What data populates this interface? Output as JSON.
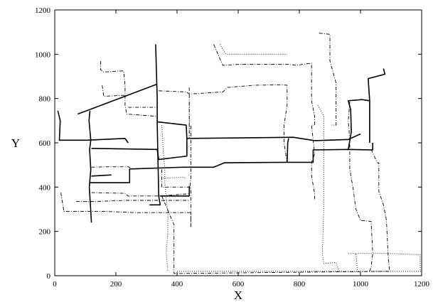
{
  "chart_data": {
    "type": "line",
    "title": "",
    "xlabel": "X",
    "ylabel": "Y",
    "xlim": [
      0,
      1200
    ],
    "ylim": [
      0,
      1200
    ],
    "grid": false,
    "legend": "none",
    "xticks": [
      "0",
      "200",
      "400",
      "600",
      "800",
      "1000",
      "1200"
    ],
    "yticks": [
      "0",
      "200",
      "400",
      "600",
      "800",
      "1000",
      "1200"
    ],
    "series": [
      {
        "style": "solid-thick",
        "points": [
          [
            10,
            745
          ],
          [
            18,
            700
          ],
          [
            15,
            612
          ],
          [
            105,
            612
          ],
          [
            230,
            620
          ],
          [
            240,
            600
          ]
        ]
      },
      {
        "style": "solid-thick",
        "points": [
          [
            115,
            745
          ],
          [
            112,
            700
          ],
          [
            118,
            612
          ],
          [
            114,
            570
          ],
          [
            118,
            480
          ],
          [
            113,
            400
          ],
          [
            120,
            240
          ]
        ]
      },
      {
        "style": "solid-thick",
        "points": [
          [
            75,
            730
          ],
          [
            335,
            865
          ]
        ]
      },
      {
        "style": "solid-thick",
        "points": [
          [
            330,
            1045
          ],
          [
            333,
            900
          ],
          [
            335,
            800
          ],
          [
            335,
            690
          ]
        ]
      },
      {
        "style": "solid-thick",
        "points": [
          [
            120,
            575
          ],
          [
            335,
            570
          ],
          [
            340,
            525
          ],
          [
            432,
            540
          ],
          [
            432,
            600
          ],
          [
            432,
            620
          ],
          [
            780,
            625
          ],
          [
            850,
            610
          ],
          [
            960,
            615
          ],
          [
            1000,
            640
          ]
        ]
      },
      {
        "style": "solid-thick",
        "points": [
          [
            335,
            695
          ],
          [
            430,
            680
          ],
          [
            432,
            620
          ]
        ]
      },
      {
        "style": "solid-thick",
        "points": [
          [
            115,
            420
          ],
          [
            245,
            420
          ],
          [
            245,
            482
          ],
          [
            420,
            490
          ],
          [
            520,
            490
          ],
          [
            555,
            510
          ],
          [
            760,
            512
          ],
          [
            845,
            512
          ],
          [
            845,
            568
          ],
          [
            960,
            570
          ],
          [
            1040,
            568
          ],
          [
            1040,
            600
          ]
        ]
      },
      {
        "style": "solid-thick",
        "points": [
          [
            120,
            450
          ],
          [
            185,
            455
          ]
        ]
      },
      {
        "style": "solid-thick",
        "points": [
          [
            335,
            690
          ],
          [
            340,
            360
          ],
          [
            345,
            320
          ],
          [
            310,
            320
          ]
        ]
      },
      {
        "style": "solid-thick",
        "points": [
          [
            345,
            360
          ],
          [
            440,
            360
          ],
          [
            440,
            405
          ]
        ]
      },
      {
        "style": "solid-thick",
        "points": [
          [
            760,
            512
          ],
          [
            762,
            600
          ],
          [
            765,
            620
          ]
        ]
      },
      {
        "style": "solid-thick",
        "points": [
          [
            960,
            570
          ],
          [
            970,
            650
          ],
          [
            968,
            750
          ],
          [
            960,
            790
          ],
          [
            1005,
            795
          ],
          [
            1030,
            790
          ],
          [
            1030,
            600
          ]
        ]
      },
      {
        "style": "solid-thick",
        "points": [
          [
            1030,
            790
          ],
          [
            1025,
            890
          ],
          [
            1080,
            910
          ],
          [
            1075,
            935
          ]
        ]
      },
      {
        "style": "dashdot",
        "points": [
          [
            150,
            970
          ],
          [
            150,
            930
          ],
          [
            160,
            920
          ],
          [
            225,
            925
          ],
          [
            230,
            860
          ],
          [
            230,
            770
          ],
          [
            235,
            730
          ],
          [
            330,
            720
          ]
        ]
      },
      {
        "style": "dashdot",
        "points": [
          [
            155,
            860
          ],
          [
            160,
            810
          ],
          [
            230,
            815
          ]
        ]
      },
      {
        "style": "dashdot",
        "points": [
          [
            240,
            760
          ],
          [
            330,
            760
          ]
        ]
      },
      {
        "style": "dashdot",
        "points": [
          [
            440,
            850
          ],
          [
            440,
            620
          ]
        ]
      },
      {
        "style": "dashdot",
        "points": [
          [
            340,
            835
          ],
          [
            430,
            830
          ],
          [
            440,
            820
          ],
          [
            550,
            830
          ],
          [
            565,
            850
          ],
          [
            650,
            860
          ],
          [
            740,
            862
          ],
          [
            760,
            860
          ],
          [
            760,
            840
          ],
          [
            760,
            770
          ],
          [
            750,
            680
          ],
          [
            750,
            600
          ],
          [
            760,
            510
          ]
        ]
      },
      {
        "style": "dashdot",
        "points": [
          [
            520,
            1045
          ],
          [
            540,
            980
          ],
          [
            550,
            950
          ],
          [
            610,
            955
          ],
          [
            760,
            955
          ],
          [
            790,
            950
          ],
          [
            840,
            960
          ],
          [
            840,
            790
          ],
          [
            850,
            720
          ],
          [
            850,
            680
          ],
          [
            840,
            680
          ],
          [
            850,
            550
          ],
          [
            840,
            512
          ],
          [
            840,
            450
          ],
          [
            850,
            370
          ],
          [
            850,
            340
          ]
        ]
      },
      {
        "style": "dashdot",
        "points": [
          [
            865,
            1095
          ],
          [
            900,
            1090
          ],
          [
            900,
            970
          ],
          [
            920,
            870
          ],
          [
            920,
            680
          ],
          [
            905,
            680
          ]
        ]
      },
      {
        "style": "dashdot",
        "points": [
          [
            120,
            490
          ],
          [
            180,
            492
          ],
          [
            240,
            492
          ],
          [
            260,
            480
          ]
        ]
      },
      {
        "style": "dashdot",
        "points": [
          [
            120,
            375
          ],
          [
            230,
            372
          ],
          [
            240,
            360
          ],
          [
            340,
            360
          ],
          [
            440,
            370
          ],
          [
            445,
            440
          ],
          [
            445,
            560
          ],
          [
            445,
            680
          ]
        ]
      },
      {
        "style": "dashdot",
        "points": [
          [
            20,
            375
          ],
          [
            25,
            330
          ],
          [
            30,
            290
          ],
          [
            170,
            290
          ],
          [
            265,
            285
          ],
          [
            445,
            285
          ],
          [
            445,
            220
          ]
        ]
      },
      {
        "style": "dashdot",
        "points": [
          [
            70,
            335
          ],
          [
            130,
            335
          ],
          [
            230,
            340
          ],
          [
            440,
            340
          ]
        ]
      },
      {
        "style": "dashdot",
        "points": [
          [
            350,
            480
          ],
          [
            350,
            400
          ],
          [
            445,
            400
          ],
          [
            445,
            220
          ]
        ]
      },
      {
        "style": "dashdot",
        "points": [
          [
            350,
            360
          ],
          [
            390,
            230
          ],
          [
            390,
            10
          ],
          [
            1100,
            20
          ]
        ]
      },
      {
        "style": "dashdot",
        "points": [
          [
            965,
            785
          ],
          [
            960,
            700
          ],
          [
            965,
            620
          ],
          [
            965,
            480
          ],
          [
            975,
            400
          ],
          [
            985,
            300
          ],
          [
            1000,
            250
          ],
          [
            1035,
            245
          ],
          [
            1040,
            100
          ],
          [
            1035,
            40
          ],
          [
            1030,
            20
          ]
        ]
      },
      {
        "style": "dashdot",
        "points": [
          [
            1035,
            570
          ],
          [
            1055,
            510
          ],
          [
            1060,
            510
          ],
          [
            1060,
            380
          ],
          [
            1075,
            320
          ],
          [
            1085,
            250
          ],
          [
            1090,
            100
          ],
          [
            1095,
            20
          ]
        ]
      },
      {
        "style": "dotted",
        "points": [
          [
            540,
            1045
          ],
          [
            560,
            1000
          ],
          [
            760,
            1000
          ]
        ]
      },
      {
        "style": "dotted",
        "points": [
          [
            440,
            780
          ],
          [
            440,
            620
          ]
        ]
      },
      {
        "style": "dotted",
        "points": [
          [
            350,
            680
          ],
          [
            355,
            560
          ],
          [
            360,
            480
          ],
          [
            360,
            420
          ],
          [
            365,
            340
          ],
          [
            370,
            290
          ],
          [
            370,
            200
          ],
          [
            365,
            100
          ],
          [
            370,
            20
          ]
        ]
      },
      {
        "style": "dotted",
        "points": [
          [
            355,
            440
          ],
          [
            420,
            445
          ],
          [
            430,
            440
          ]
        ]
      },
      {
        "style": "dotted",
        "points": [
          [
            400,
            20
          ],
          [
            650,
            20
          ],
          [
            920,
            20
          ],
          [
            1100,
            20
          ],
          [
            1200,
            20
          ]
        ]
      },
      {
        "style": "dotted",
        "points": [
          [
            860,
            770
          ],
          [
            880,
            720
          ],
          [
            880,
            560
          ],
          [
            880,
            440
          ],
          [
            880,
            300
          ],
          [
            875,
            100
          ],
          [
            880,
            55
          ],
          [
            920,
            60
          ],
          [
            930,
            20
          ]
        ]
      },
      {
        "style": "dotted",
        "points": [
          [
            985,
            100
          ],
          [
            1050,
            100
          ],
          [
            1095,
            100
          ],
          [
            1195,
            95
          ],
          [
            1195,
            20
          ]
        ]
      },
      {
        "style": "dotted",
        "points": [
          [
            960,
            100
          ],
          [
            985,
            100
          ],
          [
            990,
            20
          ]
        ]
      }
    ]
  }
}
